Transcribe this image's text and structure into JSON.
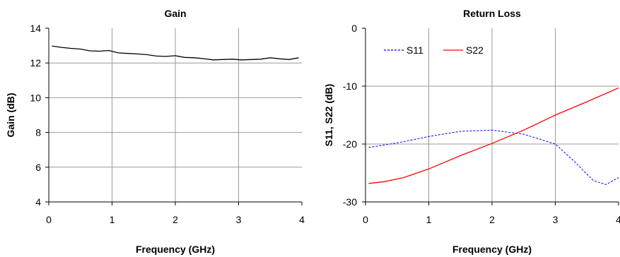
{
  "chart_data": [
    {
      "type": "line",
      "title": "Gain",
      "xlabel": "Frequency (GHz)",
      "ylabel": "Gain (dB)",
      "xlim": [
        0,
        4
      ],
      "ylim": [
        4,
        14
      ],
      "xticks": [
        "0",
        "1",
        "2",
        "3",
        "4"
      ],
      "yticks": [
        "4",
        "6",
        "8",
        "10",
        "12",
        "14"
      ],
      "grid": true,
      "series": [
        {
          "color": "#000000",
          "dash": "solid",
          "x": [
            0.05,
            0.2,
            0.35,
            0.5,
            0.65,
            0.8,
            0.95,
            1.1,
            1.25,
            1.4,
            1.55,
            1.7,
            1.85,
            2.0,
            2.15,
            2.3,
            2.45,
            2.6,
            2.75,
            2.9,
            3.05,
            3.2,
            3.35,
            3.5,
            3.65,
            3.8,
            3.95
          ],
          "y": [
            12.98,
            12.9,
            12.84,
            12.8,
            12.7,
            12.68,
            12.72,
            12.58,
            12.55,
            12.52,
            12.48,
            12.4,
            12.38,
            12.42,
            12.32,
            12.3,
            12.25,
            12.18,
            12.2,
            12.22,
            12.18,
            12.2,
            12.22,
            12.3,
            12.24,
            12.2,
            12.3
          ]
        }
      ]
    },
    {
      "type": "line",
      "title": "Return Loss",
      "xlabel": "Frequency (GHz)",
      "ylabel": "S11, S22 (dB)",
      "xlim": [
        0,
        4
      ],
      "ylim": [
        -30,
        0
      ],
      "xticks": [
        "0",
        "1",
        "2",
        "3",
        "4"
      ],
      "yticks": [
        "-30",
        "-20",
        "-10",
        "0"
      ],
      "grid": true,
      "legend": "top-left",
      "series": [
        {
          "name": "S11",
          "color": "#0000ff",
          "dash": "dashed",
          "x": [
            0.05,
            0.5,
            1.0,
            1.5,
            2.0,
            2.5,
            3.0,
            3.3,
            3.6,
            3.8,
            4.0
          ],
          "y": [
            -20.6,
            -19.8,
            -18.7,
            -17.8,
            -17.6,
            -18.3,
            -20.0,
            -23.0,
            -26.3,
            -27.0,
            -25.8
          ]
        },
        {
          "name": "S22",
          "color": "#ff0000",
          "dash": "solid",
          "x": [
            0.05,
            0.3,
            0.6,
            1.0,
            1.5,
            2.0,
            2.5,
            3.0,
            3.5,
            4.0
          ],
          "y": [
            -26.8,
            -26.5,
            -25.8,
            -24.3,
            -22.0,
            -19.9,
            -17.6,
            -15.0,
            -12.7,
            -10.3
          ]
        }
      ]
    }
  ]
}
